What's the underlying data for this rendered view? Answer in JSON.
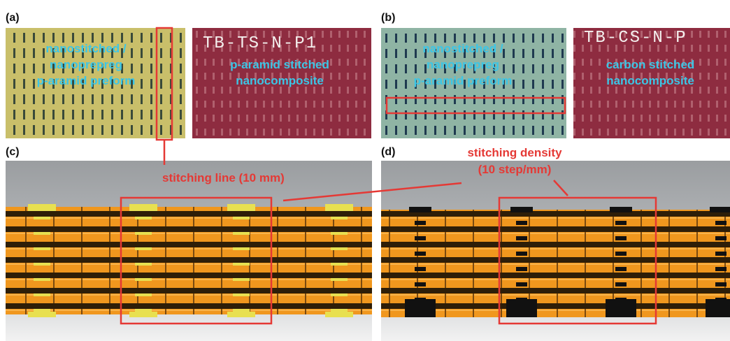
{
  "panel_a": {
    "label": "(a)",
    "preform_caption": [
      "nanostitched /",
      "nanoprepreg",
      "p-aramid preform"
    ],
    "sample_marking": "TB-TS-N-P1",
    "composite_caption": [
      "p-aramid stitched",
      "nanocomposite"
    ]
  },
  "panel_b": {
    "label": "(b)",
    "preform_caption": [
      "nanostitched /",
      "nanoprepreg",
      "p-aramid preform"
    ],
    "sample_marking": "TB-CS-N-P",
    "composite_caption": [
      "carbon stitched",
      "nanocomposite"
    ]
  },
  "panel_c": {
    "label": "(c)",
    "annotation": "stitching line (10 mm)"
  },
  "panel_d": {
    "label": "(d)",
    "annotation": [
      "stitching density",
      "(10 step/mm)"
    ]
  }
}
